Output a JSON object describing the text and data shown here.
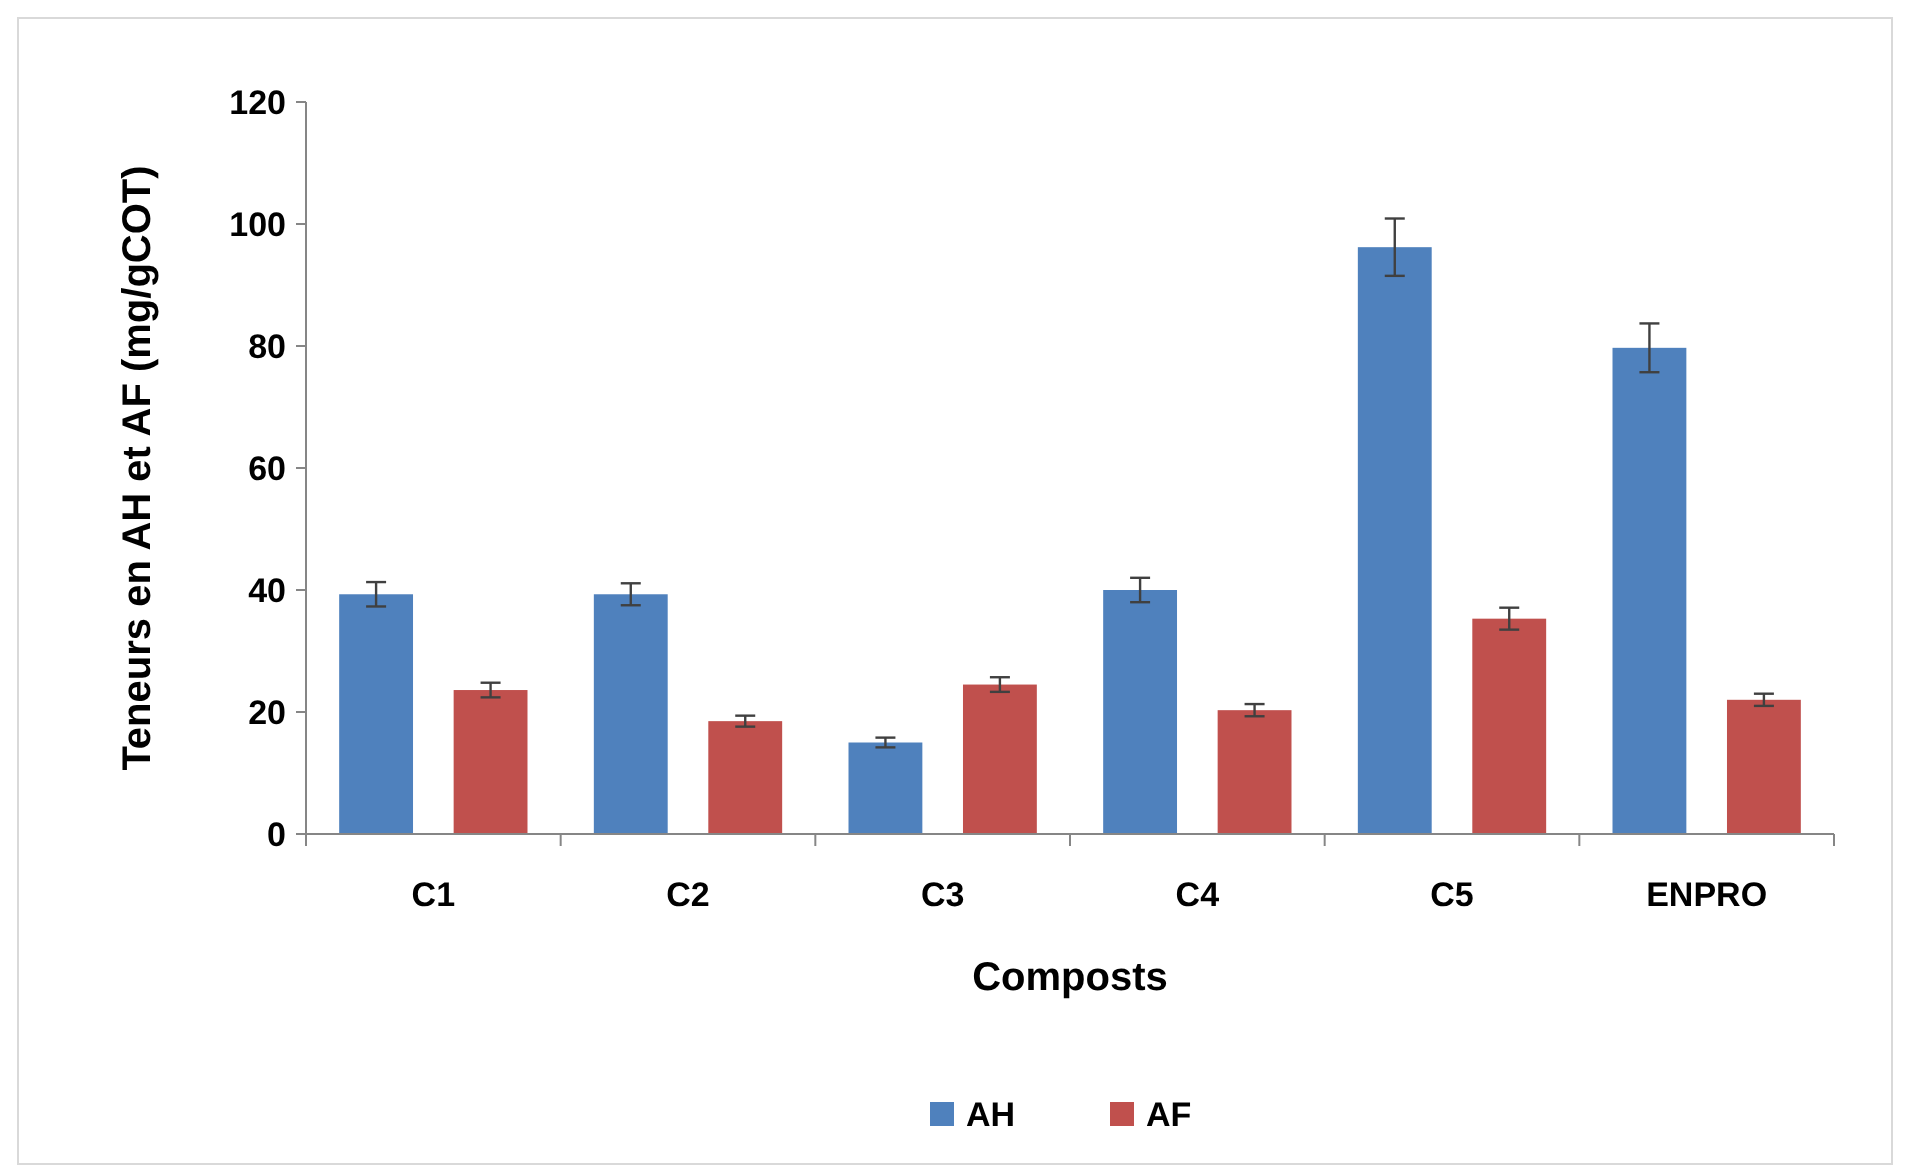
{
  "chart_data": {
    "type": "bar",
    "xlabel": "Composts",
    "ylabel": "Teneurs en AH et AF (mg/gCOT)",
    "categories": [
      "C1",
      "C2",
      "C3",
      "C4",
      "C5",
      "ENPRO"
    ],
    "series": [
      {
        "name": "AH",
        "color": "#4f81bd",
        "values": [
          39.3,
          39.3,
          15,
          40,
          96.2,
          79.7
        ],
        "errors": [
          2,
          1.8,
          0.8,
          2,
          4.7,
          4
        ]
      },
      {
        "name": "AF",
        "color": "#c0504d",
        "values": [
          23.6,
          18.5,
          24.5,
          20.3,
          35.3,
          22
        ],
        "errors": [
          1.2,
          0.9,
          1.2,
          1,
          1.8,
          1
        ]
      }
    ],
    "ylim": [
      0,
      120
    ],
    "yticks": [
      0,
      20,
      40,
      60,
      80,
      100,
      120
    ],
    "grid": false,
    "legend": "bottom"
  }
}
